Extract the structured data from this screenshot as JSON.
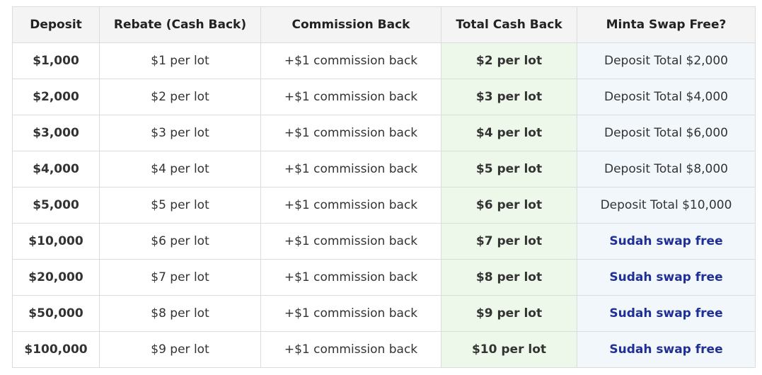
{
  "table": {
    "headers": [
      "Deposit",
      "Rebate (Cash Back)",
      "Commission Back",
      "Total Cash Back",
      "Minta Swap Free?"
    ],
    "rows": [
      {
        "deposit": "$1,000",
        "rebate": "$1 per lot",
        "commission": "+$1 commission back",
        "total": "$2 per lot",
        "swap": "Deposit Total $2,000",
        "swap_free": false
      },
      {
        "deposit": "$2,000",
        "rebate": "$2 per lot",
        "commission": "+$1 commission back",
        "total": "$3 per lot",
        "swap": "Deposit Total $4,000",
        "swap_free": false
      },
      {
        "deposit": "$3,000",
        "rebate": "$3 per lot",
        "commission": "+$1 commission back",
        "total": "$4 per lot",
        "swap": "Deposit Total $6,000",
        "swap_free": false
      },
      {
        "deposit": "$4,000",
        "rebate": "$4 per lot",
        "commission": "+$1 commission back",
        "total": "$5 per lot",
        "swap": "Deposit Total $8,000",
        "swap_free": false
      },
      {
        "deposit": "$5,000",
        "rebate": "$5 per lot",
        "commission": "+$1 commission back",
        "total": "$6 per lot",
        "swap": "Deposit Total $10,000",
        "swap_free": false
      },
      {
        "deposit": "$10,000",
        "rebate": "$6 per lot",
        "commission": "+$1 commission back",
        "total": "$7 per lot",
        "swap": "Sudah swap free",
        "swap_free": true
      },
      {
        "deposit": "$20,000",
        "rebate": "$7 per lot",
        "commission": "+$1 commission back",
        "total": "$8 per lot",
        "swap": "Sudah swap free",
        "swap_free": true
      },
      {
        "deposit": "$50,000",
        "rebate": "$8 per lot",
        "commission": "+$1 commission back",
        "total": "$9 per lot",
        "swap": "Sudah swap free",
        "swap_free": true
      },
      {
        "deposit": "$100,000",
        "rebate": "$9 per lot",
        "commission": "+$1 commission back",
        "total": "$10 per lot",
        "swap": "Sudah swap free",
        "swap_free": true
      }
    ]
  },
  "colors": {
    "header_bg": "#f4f4f4",
    "border": "#dcdcdc",
    "total_bg": "#eef8ea",
    "total_text": "#1f7a1f",
    "swap_bg": "#f1f7fb",
    "swap_free_text": "#1f2f96"
  }
}
